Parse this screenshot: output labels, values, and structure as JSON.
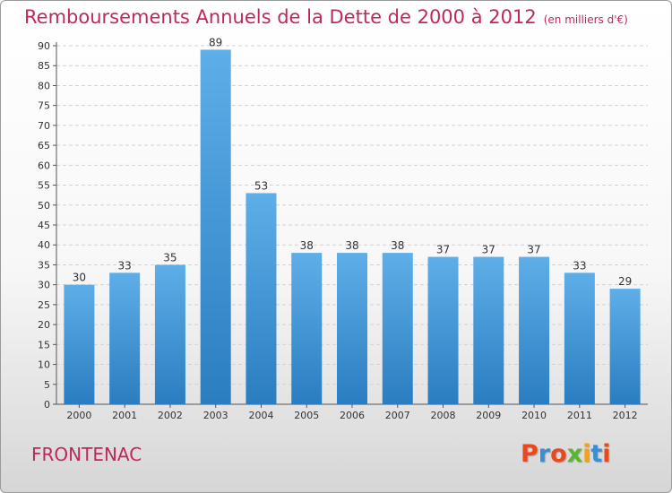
{
  "header": {
    "title": "Remboursements Annuels de la Dette de 2000 à 2012",
    "unit": "(en milliers d'€)"
  },
  "footer": {
    "commune": "FRONTENAC",
    "brand": {
      "letters": [
        "P",
        "r",
        "o",
        "x",
        "i",
        "t",
        "i"
      ],
      "colors": [
        "#e8491d",
        "#3b8fd1",
        "#e8491d",
        "#5bb531",
        "#f3a11a",
        "#3b8fd1",
        "#e8491d"
      ]
    }
  },
  "colors": {
    "bar_top": "#5eaee8",
    "bar_bottom": "#2a7dc0",
    "grid": "#d2d2d2",
    "axis": "#555555",
    "text": "#333333"
  },
  "chart_data": {
    "type": "bar",
    "title": "Remboursements Annuels de la Dette de 2000 à 2012",
    "subtitle": "(en milliers d'€)",
    "categories": [
      "2000",
      "2001",
      "2002",
      "2003",
      "2004",
      "2005",
      "2006",
      "2007",
      "2008",
      "2009",
      "2010",
      "2011",
      "2012"
    ],
    "values": [
      30,
      33,
      35,
      89,
      53,
      38,
      38,
      38,
      37,
      37,
      37,
      33,
      29
    ],
    "ylim": [
      0,
      90
    ],
    "yticks": [
      0,
      5,
      10,
      15,
      20,
      25,
      30,
      35,
      40,
      45,
      50,
      55,
      60,
      65,
      70,
      75,
      80,
      85,
      90
    ],
    "grid": true,
    "data_labels": true
  }
}
